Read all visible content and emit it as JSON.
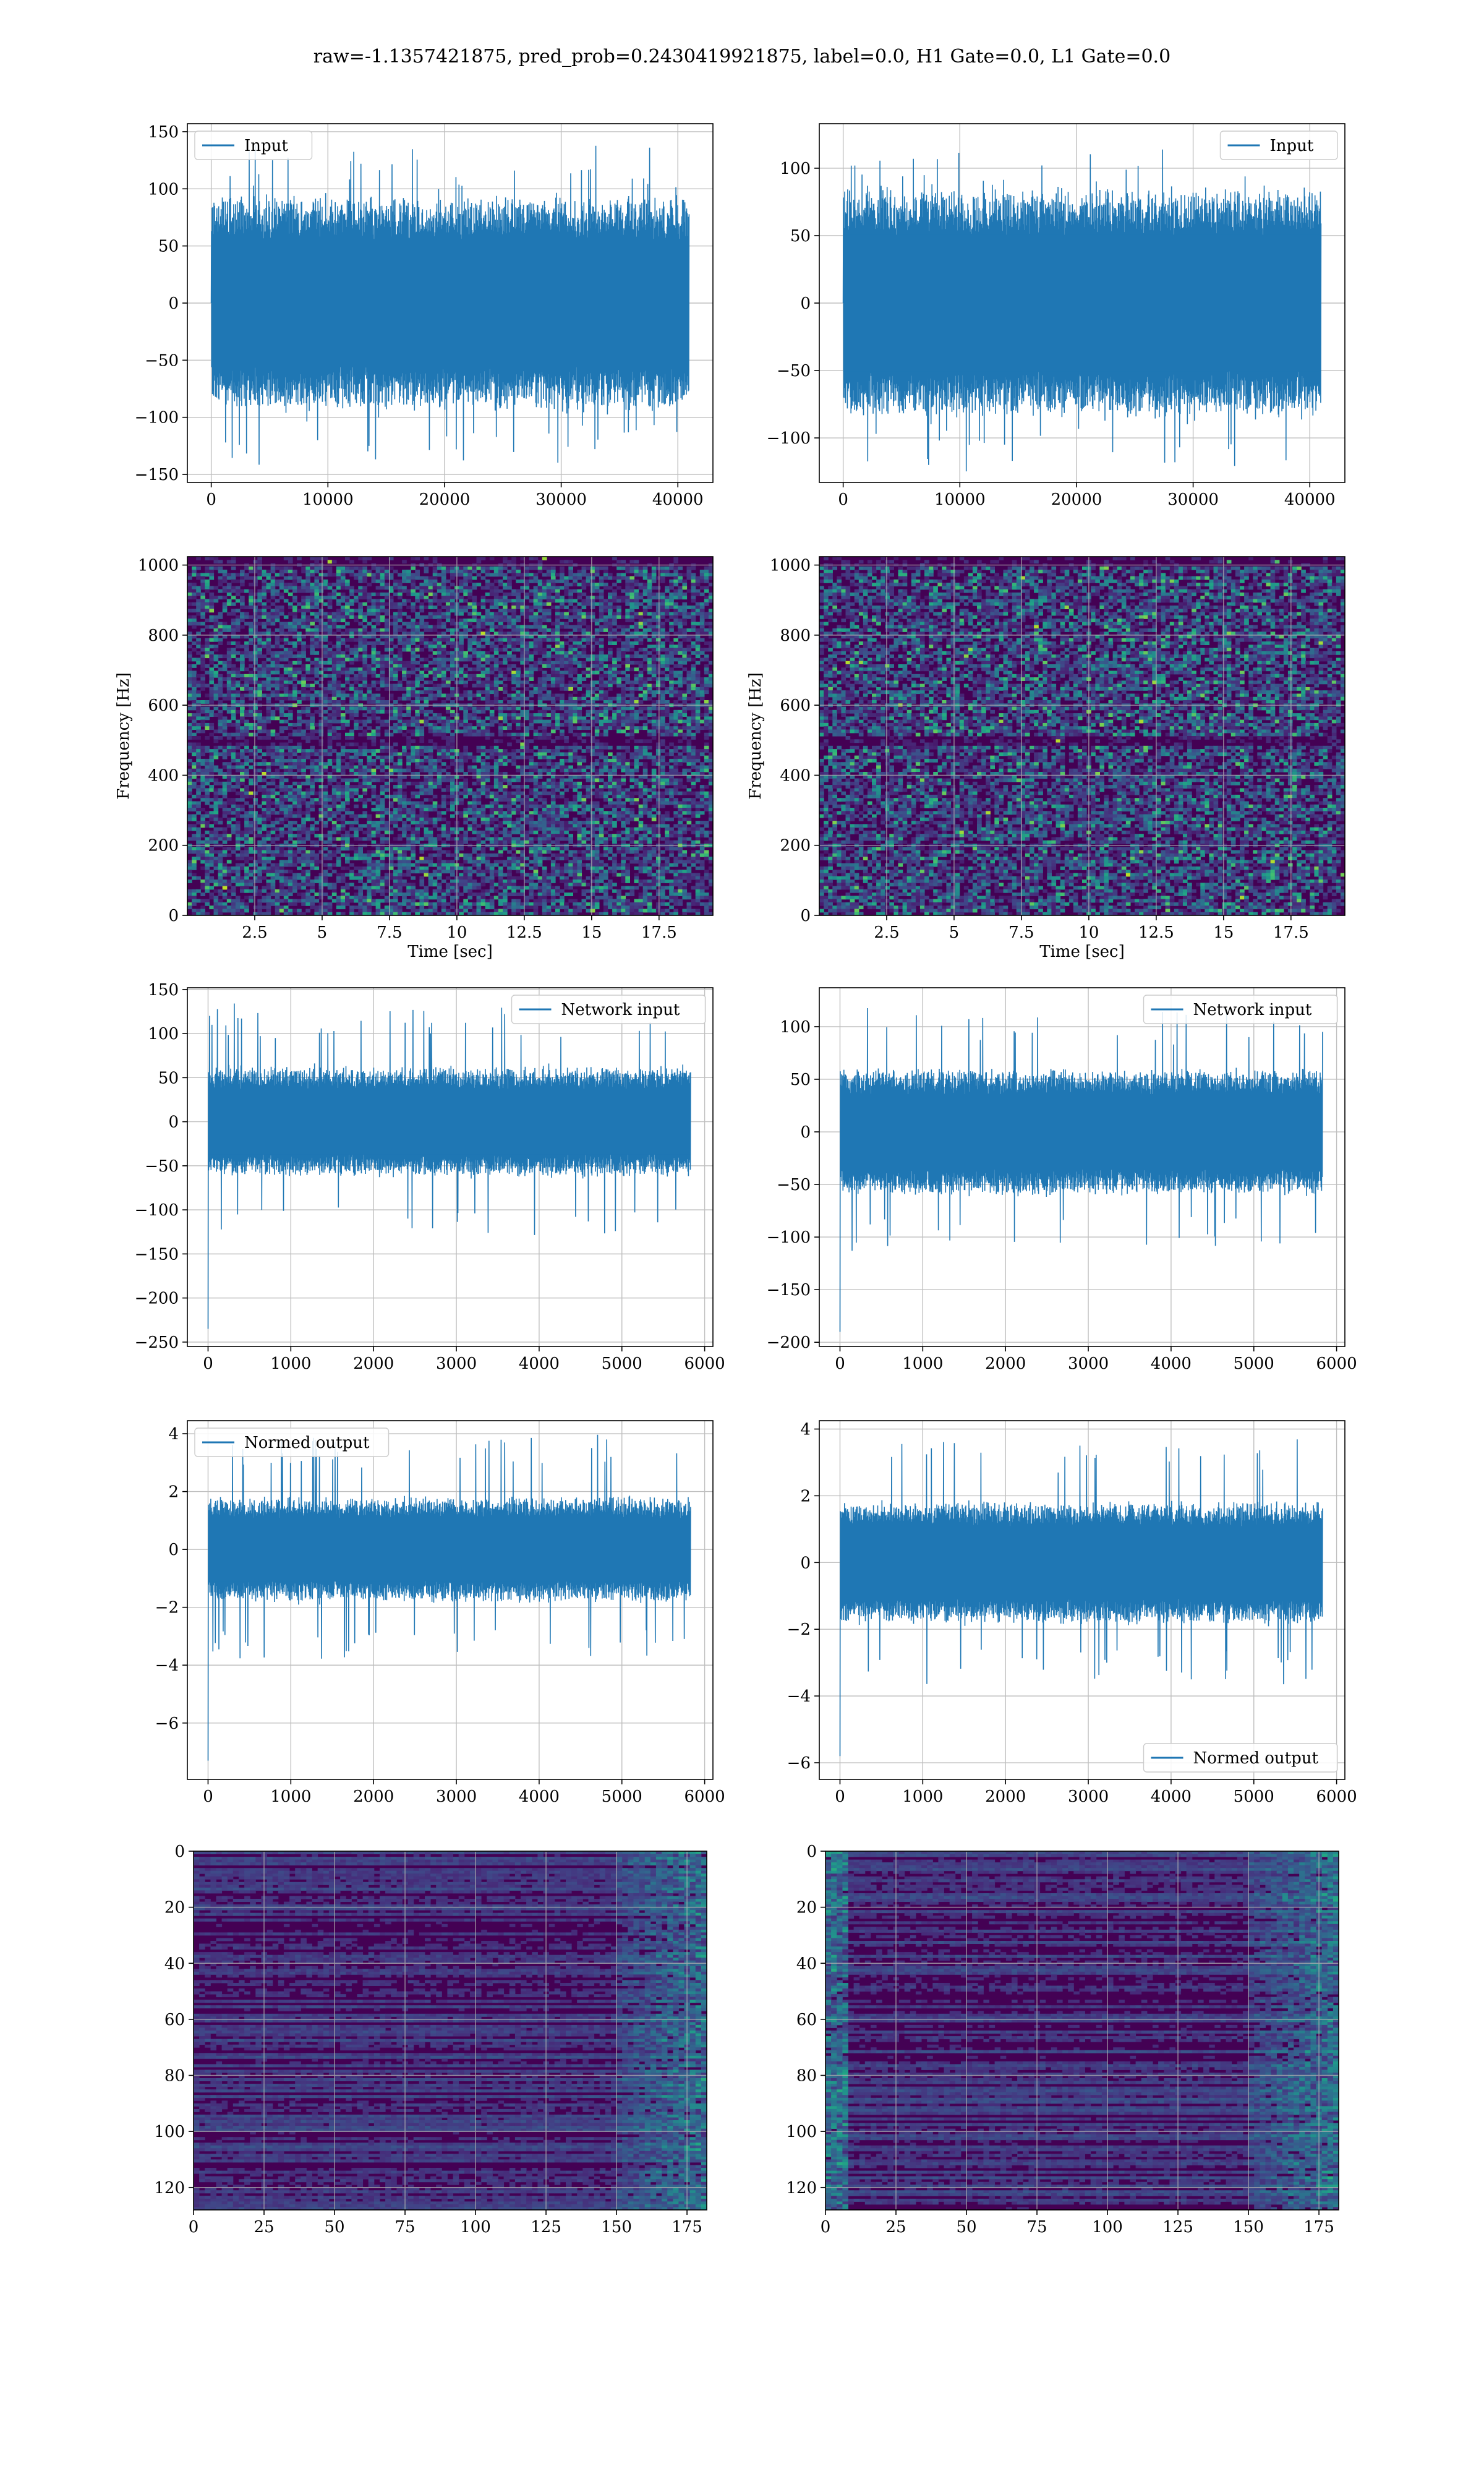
{
  "suptitle": "raw=-1.1357421875, pred_prob=0.2430419921875, label=0.0, H1 Gate=0.0, L1 Gate=0.0",
  "colors": {
    "line": "#1f77b4",
    "grid": "#b0b0b0",
    "viridis": [
      "#440154",
      "#482475",
      "#414487",
      "#355f8d",
      "#2a788e",
      "#21918c",
      "#22a884",
      "#44bf70",
      "#7ad151",
      "#bddf26",
      "#fde725"
    ]
  },
  "chart_data": [
    {
      "id": "h1-input",
      "type": "line",
      "legend": "Input",
      "legend_loc": "upper-left",
      "x_range": [
        0,
        40960
      ],
      "ylim": [
        -157,
        157
      ],
      "xticks": [
        0,
        10000,
        20000,
        30000,
        40000
      ],
      "yticks": [
        -150,
        -100,
        -50,
        0,
        50,
        100,
        150
      ],
      "xlabel": "",
      "ylabel": "",
      "signal": {
        "amplitude": 72,
        "spike_max": 142,
        "spike_min": -142,
        "start_value": 0
      }
    },
    {
      "id": "l1-input",
      "type": "line",
      "legend": "Input",
      "legend_loc": "upper-right",
      "x_range": [
        0,
        40960
      ],
      "ylim": [
        -133,
        133
      ],
      "xticks": [
        0,
        10000,
        20000,
        30000,
        40000
      ],
      "yticks": [
        -100,
        -50,
        0,
        50,
        100
      ],
      "xlabel": "",
      "ylabel": "",
      "signal": {
        "amplitude": 65,
        "spike_max": 112,
        "spike_min": -124,
        "start_value": 0
      }
    },
    {
      "id": "h1-spectrogram",
      "type": "heatmap",
      "x_range": [
        0,
        19.5
      ],
      "ylim": [
        0,
        1024
      ],
      "xticks": [
        2.5,
        5.0,
        7.5,
        10.0,
        12.5,
        15.0,
        17.5
      ],
      "yticks": [
        0,
        200,
        400,
        600,
        800,
        1000
      ],
      "xlabel": "Time [sec]",
      "ylabel": "Frequency [Hz]",
      "dark_bands_hz": [
        500,
        1012
      ]
    },
    {
      "id": "l1-spectrogram",
      "type": "heatmap",
      "x_range": [
        0,
        19.5
      ],
      "ylim": [
        0,
        1024
      ],
      "xticks": [
        2.5,
        5.0,
        7.5,
        10.0,
        12.5,
        15.0,
        17.5
      ],
      "yticks": [
        0,
        200,
        400,
        600,
        800,
        1000
      ],
      "xlabel": "Time [sec]",
      "ylabel": "Frequency [Hz]",
      "dark_bands_hz": [
        500,
        1012
      ]
    },
    {
      "id": "h1-network-input",
      "type": "line",
      "legend": "Network input",
      "legend_loc": "upper-right",
      "x_range": [
        0,
        5830
      ],
      "xlim": [
        -250,
        6100
      ],
      "ylim": [
        -255,
        152
      ],
      "xticks": [
        0,
        1000,
        2000,
        3000,
        4000,
        5000,
        6000
      ],
      "yticks": [
        -250,
        -200,
        -150,
        -100,
        -50,
        0,
        50,
        100,
        150
      ],
      "xlabel": "",
      "ylabel": "",
      "signal": {
        "amplitude": 48,
        "spike_max": 132,
        "spike_min": -130,
        "start_value": -235
      }
    },
    {
      "id": "l1-network-input",
      "type": "line",
      "legend": "Network input",
      "legend_loc": "upper-right",
      "x_range": [
        0,
        5830
      ],
      "xlim": [
        -250,
        6100
      ],
      "ylim": [
        -204,
        137
      ],
      "xticks": [
        0,
        1000,
        2000,
        3000,
        4000,
        5000,
        6000
      ],
      "yticks": [
        -200,
        -150,
        -100,
        -50,
        0,
        50,
        100
      ],
      "xlabel": "",
      "ylabel": "",
      "signal": {
        "amplitude": 46,
        "spike_max": 122,
        "spike_min": -115,
        "start_value": -190
      }
    },
    {
      "id": "h1-normed-output",
      "type": "line",
      "legend": "Normed output",
      "legend_loc": "upper-left",
      "x_range": [
        0,
        5830
      ],
      "xlim": [
        -250,
        6100
      ],
      "ylim": [
        -7.95,
        4.45
      ],
      "xticks": [
        0,
        1000,
        2000,
        3000,
        4000,
        5000,
        6000
      ],
      "yticks": [
        -6,
        -4,
        -2,
        0,
        2,
        4
      ],
      "xlabel": "",
      "ylabel": "",
      "signal": {
        "amplitude": 1.4,
        "spike_max": 4.0,
        "spike_min": -3.9,
        "start_value": -7.3
      }
    },
    {
      "id": "l1-normed-output",
      "type": "line",
      "legend": "Normed output",
      "legend_loc": "lower-right",
      "x_range": [
        0,
        5830
      ],
      "xlim": [
        -250,
        6100
      ],
      "ylim": [
        -6.5,
        4.25
      ],
      "xticks": [
        0,
        1000,
        2000,
        3000,
        4000,
        5000,
        6000
      ],
      "yticks": [
        -6,
        -4,
        -2,
        0,
        2,
        4
      ],
      "xlabel": "",
      "ylabel": "",
      "signal": {
        "amplitude": 1.4,
        "spike_max": 3.7,
        "spike_min": -3.6,
        "start_value": -5.8
      }
    },
    {
      "id": "h1-feature-map",
      "type": "heatmap",
      "x_range": [
        0,
        182
      ],
      "ylim": [
        128,
        0
      ],
      "xticks": [
        0,
        25,
        50,
        75,
        100,
        125,
        150,
        175
      ],
      "yticks": [
        0,
        20,
        40,
        60,
        80,
        100,
        120
      ],
      "xlabel": "",
      "ylabel": ""
    },
    {
      "id": "l1-feature-map",
      "type": "heatmap",
      "x_range": [
        0,
        182
      ],
      "ylim": [
        128,
        0
      ],
      "xticks": [
        0,
        25,
        50,
        75,
        100,
        125,
        150,
        175
      ],
      "yticks": [
        0,
        20,
        40,
        60,
        80,
        100,
        120
      ],
      "xlabel": "",
      "ylabel": ""
    }
  ]
}
